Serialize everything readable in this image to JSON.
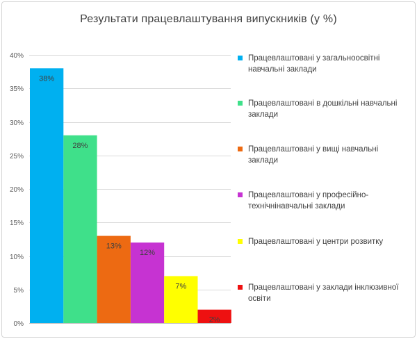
{
  "chart_data": {
    "type": "bar",
    "title": "Результати працевлаштування випускників (у %)",
    "ylim": [
      0,
      40
    ],
    "yticks": [
      "0%",
      "5%",
      "10%",
      "15%",
      "20%",
      "25%",
      "30%",
      "35%",
      "40%"
    ],
    "grid": true,
    "legend_position": "right",
    "series": [
      {
        "name": "Працевлаштовані у загальноосвітні навчальні заклади",
        "value": 38,
        "label": "38%",
        "color": "#00B0F0"
      },
      {
        "name": "Працевлаштовані в дошкільні навчальні заклади",
        "value": 28,
        "label": "28%",
        "color": "#3FE08A"
      },
      {
        "name": "Працевлаштовані у вищі навчальні заклади",
        "value": 13,
        "label": "13%",
        "color": "#ED6A12"
      },
      {
        "name": "Працевлаштовані у професійно-технічнінавчальні заклади",
        "value": 12,
        "label": "12%",
        "color": "#C633D2"
      },
      {
        "name": "Працевлаштовані у центри розвитку",
        "value": 7,
        "label": "7%",
        "color": "#FFFF00"
      },
      {
        "name": "Працевлаштовані у заклади інклюзивної освіти",
        "value": 2,
        "label": "2%",
        "color": "#EE1111"
      }
    ]
  }
}
